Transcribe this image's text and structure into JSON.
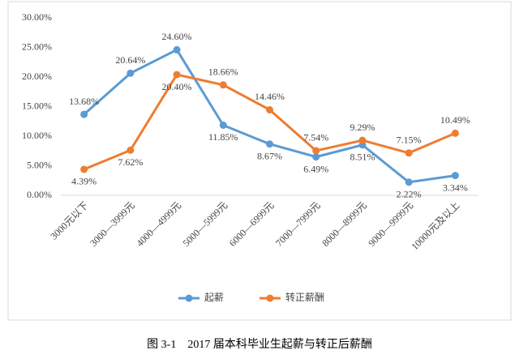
{
  "chart_data": {
    "type": "line",
    "caption": "图 3-1　2017 届本科毕业生起薪与转正后薪酬",
    "categories": [
      "3000元以下",
      "3000—3999元",
      "4000—4999元",
      "5000—5999元",
      "6000—6999元",
      "7000—7999元",
      "8000—8999元",
      "9000—9999元",
      "10000元及以上"
    ],
    "series": [
      {
        "name": "起薪",
        "color": "#5b9bd5",
        "values": [
          13.68,
          20.64,
          24.6,
          11.85,
          8.67,
          6.49,
          8.51,
          2.22,
          3.34
        ],
        "value_labels": [
          "13.68%",
          "20.64%",
          "24.60%",
          "11.85%",
          "8.67%",
          "6.49%",
          "8.51%",
          "2.22%",
          "3.34%"
        ]
      },
      {
        "name": "转正薪酬",
        "color": "#ed7d31",
        "values": [
          4.39,
          7.62,
          20.4,
          18.66,
          14.46,
          7.54,
          9.29,
          7.15,
          10.49
        ],
        "value_labels": [
          "4.39%",
          "7.62%",
          "20.40%",
          "18.66%",
          "14.46%",
          "7.54%",
          "9.29%",
          "7.15%",
          "10.49%"
        ]
      }
    ],
    "ylim": [
      0,
      30
    ],
    "yticks": [
      {
        "value": 0,
        "label": "0.00%"
      },
      {
        "value": 5,
        "label": "5.00%"
      },
      {
        "value": 10,
        "label": "10.00%"
      },
      {
        "value": 15,
        "label": "15.00%"
      },
      {
        "value": 20,
        "label": "20.00%"
      },
      {
        "value": 25,
        "label": "25.00%"
      },
      {
        "value": 30,
        "label": "30.00%"
      }
    ],
    "grid": false,
    "legend": "bottom"
  }
}
